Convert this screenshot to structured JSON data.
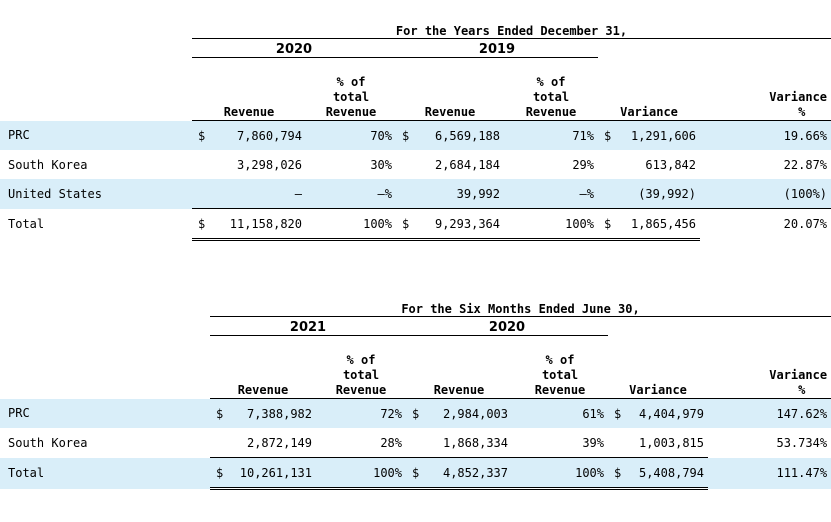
{
  "table1": {
    "super_header": "For the  Years Ended December  31,",
    "years": [
      "2020",
      "2019"
    ],
    "col_headers": {
      "revenue": "Revenue",
      "pct_total": [
        "% of",
        "total",
        "Revenue"
      ],
      "variance": "Variance",
      "variance_pct": [
        "Variance",
        "%"
      ]
    },
    "rows": [
      {
        "label": "PRC",
        "cur1": "$",
        "rev1": "7,860,794",
        "pct1": "70%",
        "cur2": "$",
        "rev2": "6,569,188",
        "pct2": "71%",
        "cur3": "$",
        "var": "1,291,606",
        "varpct": "19.66%"
      },
      {
        "label": "South Korea",
        "cur1": "",
        "rev1": "3,298,026",
        "pct1": "30%",
        "cur2": "",
        "rev2": "2,684,184",
        "pct2": "29%",
        "cur3": "",
        "var": "613,842",
        "varpct": "22.87%"
      },
      {
        "label": "United  States",
        "cur1": "",
        "rev1": "—",
        "pct1": "—%",
        "cur2": "",
        "rev2": "39,992",
        "pct2": "—%",
        "cur3": "",
        "var": "(39,992)",
        "varpct": "(100%)"
      },
      {
        "label": "Total",
        "cur1": "$",
        "rev1": "11,158,820",
        "pct1": "100%",
        "cur2": "$",
        "rev2": "9,293,364",
        "pct2": "100%",
        "cur3": "$",
        "var": "1,865,456",
        "varpct": "20.07%"
      }
    ]
  },
  "table2": {
    "super_header": "For the Six  Months Ended June  30,",
    "years": [
      "2021",
      "2020"
    ],
    "col_headers": {
      "revenue": "Revenue",
      "pct_total": [
        "% of",
        "total",
        "Revenue"
      ],
      "variance": "Variance",
      "variance_pct": [
        "Variance",
        "%"
      ]
    },
    "rows": [
      {
        "label": "PRC",
        "cur1": "$",
        "rev1": "7,388,982",
        "pct1": "72%",
        "cur2": "$",
        "rev2": "2,984,003",
        "pct2": "61%",
        "cur3": "$",
        "var": "4,404,979",
        "varpct": "147.62%"
      },
      {
        "label": "South Korea",
        "cur1": "",
        "rev1": "2,872,149",
        "pct1": "28%",
        "cur2": "",
        "rev2": "1,868,334",
        "pct2": "39%",
        "cur3": "",
        "var": "1,003,815",
        "varpct": "53.734%"
      },
      {
        "label": "Total",
        "cur1": "$",
        "rev1": "10,261,131",
        "pct1": "100%",
        "cur2": "$",
        "rev2": "4,852,337",
        "pct2": "100%",
        "cur3": "$",
        "var": "5,408,794",
        "varpct": "111.47%"
      }
    ]
  },
  "colors": {
    "row_shade": "#d9eef9"
  }
}
